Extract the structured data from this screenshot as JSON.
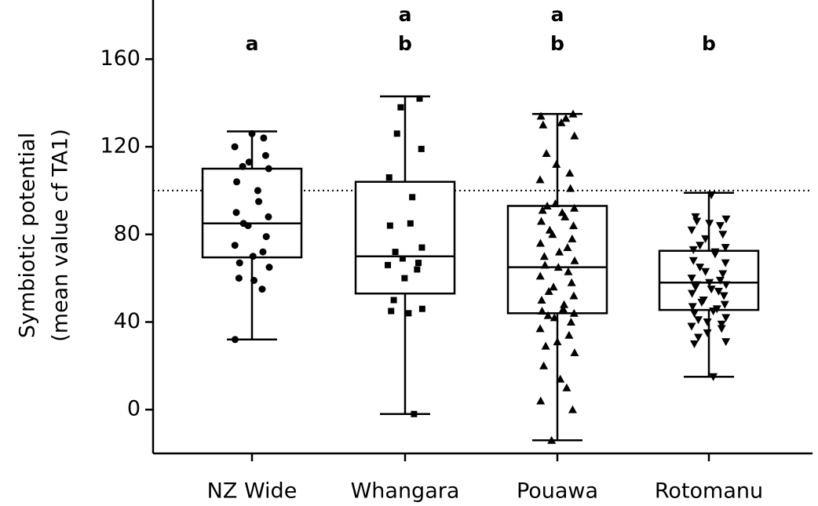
{
  "chart_data": {
    "type": "box",
    "ylabel": [
      "Symbiotic potential",
      "(mean value cf TA1)"
    ],
    "ylim": [
      -20,
      187
    ],
    "yticks": [
      0,
      40,
      80,
      120,
      160
    ],
    "hline": 100,
    "categories": [
      "NZ Wide",
      "Whangara",
      "Pouawa",
      "Rotomanu"
    ],
    "annotations": [
      [
        "a"
      ],
      [
        "a",
        "b"
      ],
      [
        "a",
        "b"
      ],
      [
        "b"
      ]
    ],
    "series": [
      {
        "name": "NZ Wide",
        "marker": "circle",
        "whislo": 32,
        "q1": 69.5,
        "med": 85,
        "q3": 110,
        "whishi": 127,
        "points": [
          126,
          124,
          120,
          116,
          113,
          111,
          110,
          104,
          100,
          95,
          90,
          88,
          85,
          84,
          79,
          75,
          72,
          70,
          67,
          65,
          60,
          59,
          55,
          32
        ]
      },
      {
        "name": "Whangara",
        "marker": "square",
        "whislo": -2,
        "q1": 53,
        "med": 70,
        "q3": 104,
        "whishi": 143,
        "points": [
          142,
          138,
          126,
          119,
          106,
          97,
          85,
          84,
          74,
          72,
          69,
          67,
          66,
          64,
          60,
          50,
          46,
          45,
          44,
          -2
        ]
      },
      {
        "name": "Pouawa",
        "marker": "triangle-up",
        "whislo": -14,
        "q1": 44,
        "med": 65,
        "q3": 93,
        "whishi": 135,
        "points": [
          135,
          134,
          133,
          131,
          130,
          125,
          117,
          112,
          108,
          105,
          101,
          94,
          93,
          92,
          91,
          90,
          88,
          86,
          84,
          82,
          80,
          78,
          76,
          74,
          72,
          70,
          68,
          66,
          65,
          63,
          61,
          58,
          56,
          54,
          52,
          50,
          48,
          46,
          45,
          44,
          43,
          42,
          40,
          37,
          34,
          31,
          29,
          26,
          20,
          14,
          10,
          4,
          0,
          -14
        ]
      },
      {
        "name": "Rotomanu",
        "marker": "triangle-down",
        "whislo": 15,
        "q1": 45.5,
        "med": 58,
        "q3": 72.5,
        "whishi": 99,
        "points": [
          98,
          88,
          87,
          86,
          85,
          84,
          82,
          80,
          78,
          75,
          74,
          73,
          72,
          71,
          68,
          67,
          65,
          63,
          62,
          60,
          59,
          58,
          57,
          57,
          56,
          55,
          54,
          53,
          52,
          50,
          49,
          48,
          47,
          46,
          45,
          44,
          42,
          41,
          40,
          39,
          38,
          37,
          35,
          33,
          31,
          30,
          15
        ]
      }
    ]
  }
}
